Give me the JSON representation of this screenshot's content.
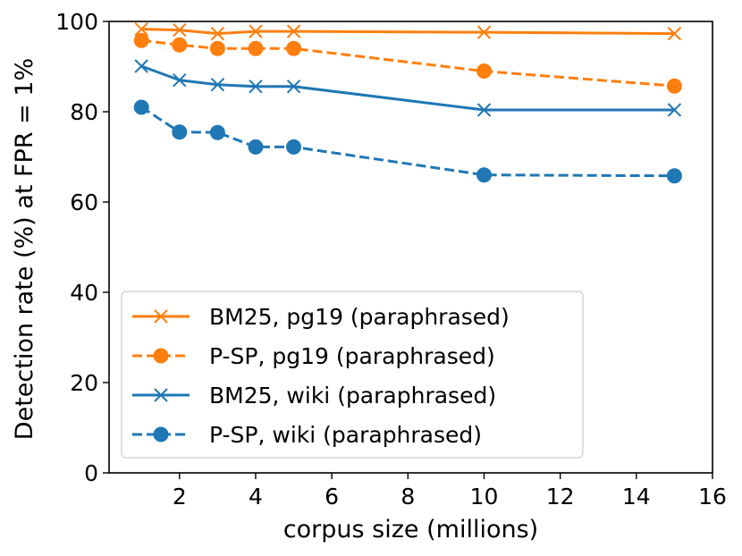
{
  "chart_data": {
    "type": "line",
    "title": "",
    "xlabel": "corpus size (millions)",
    "ylabel": "Detection rate (%) at FPR = 1%",
    "xlim": [
      0.15,
      16
    ],
    "ylim": [
      0,
      100
    ],
    "xticks": [
      2,
      4,
      6,
      8,
      10,
      12,
      14,
      16
    ],
    "yticks": [
      0,
      20,
      40,
      60,
      80,
      100
    ],
    "grid": false,
    "legend_position": "lower-left",
    "series": [
      {
        "name": "BM25, pg19 (paraphrased)",
        "color": "#ff7f0e",
        "dash": "solid",
        "marker": "x",
        "x": [
          1,
          2,
          3,
          4,
          5,
          10,
          15
        ],
        "y": [
          98.3,
          98.1,
          97.3,
          97.8,
          97.8,
          97.6,
          97.3
        ]
      },
      {
        "name": "P-SP, pg19 (paraphrased)",
        "color": "#ff7f0e",
        "dash": "dashed",
        "marker": "circle",
        "x": [
          1,
          2,
          3,
          4,
          5,
          10,
          15
        ],
        "y": [
          95.8,
          94.8,
          94.0,
          94.0,
          94.0,
          89.0,
          85.7
        ]
      },
      {
        "name": "BM25, wiki (paraphrased)",
        "color": "#1f77b4",
        "dash": "solid",
        "marker": "x",
        "x": [
          1,
          2,
          3,
          4,
          5,
          10,
          15
        ],
        "y": [
          90.1,
          87.0,
          86.0,
          85.6,
          85.6,
          80.4,
          80.4
        ]
      },
      {
        "name": "P-SP, wiki (paraphrased)",
        "color": "#1f77b4",
        "dash": "dashed",
        "marker": "circle",
        "x": [
          1,
          2,
          3,
          4,
          5,
          10,
          15
        ],
        "y": [
          81.0,
          75.5,
          75.4,
          72.2,
          72.2,
          66.0,
          65.8
        ]
      }
    ]
  }
}
